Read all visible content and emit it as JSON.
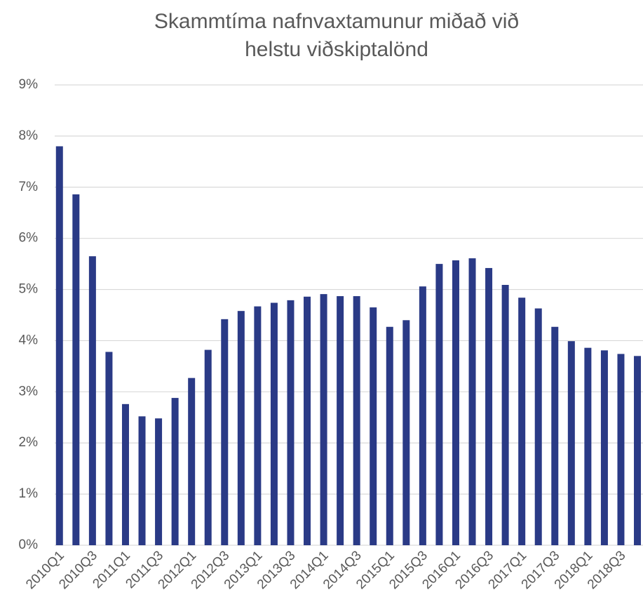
{
  "chart_data": {
    "type": "bar",
    "title": [
      "Skammtíma nafnvaxtamunur miðað við",
      "helstu viðskiptalönd"
    ],
    "categories": [
      "2010Q1",
      null,
      "2010Q3",
      null,
      "2011Q1",
      null,
      "2011Q3",
      null,
      "2012Q1",
      null,
      "2012Q3",
      null,
      "2013Q1",
      null,
      "2013Q3",
      null,
      "2014Q1",
      null,
      "2014Q3",
      null,
      "2015Q1",
      null,
      "2015Q3",
      null,
      "2016Q1",
      null,
      "2016Q3",
      null,
      "2017Q1",
      null,
      "2017Q3",
      null,
      "2018Q1",
      null,
      "2018Q3",
      null
    ],
    "values": [
      7.8,
      6.86,
      5.65,
      3.78,
      2.76,
      2.52,
      2.48,
      2.88,
      3.27,
      3.82,
      4.42,
      4.58,
      4.67,
      4.74,
      4.79,
      4.86,
      4.91,
      4.87,
      4.87,
      4.65,
      4.27,
      4.4,
      5.06,
      5.5,
      5.57,
      5.61,
      5.42,
      5.09,
      4.84,
      4.63,
      4.27,
      3.99,
      3.86,
      3.81,
      3.74,
      3.7
    ],
    "color": "#2a3a86",
    "ylim": [
      0,
      9
    ],
    "yticks": [
      {
        "value": 0,
        "label": "0%"
      },
      {
        "value": 1,
        "label": "1%"
      },
      {
        "value": 2,
        "label": "2%"
      },
      {
        "value": 3,
        "label": "3%"
      },
      {
        "value": 4,
        "label": "4%"
      },
      {
        "value": 5,
        "label": "5%"
      },
      {
        "value": 6,
        "label": "6%"
      },
      {
        "value": 7,
        "label": "7%"
      },
      {
        "value": 8,
        "label": "8%"
      },
      {
        "value": 9,
        "label": "9%"
      }
    ],
    "grid": true
  }
}
